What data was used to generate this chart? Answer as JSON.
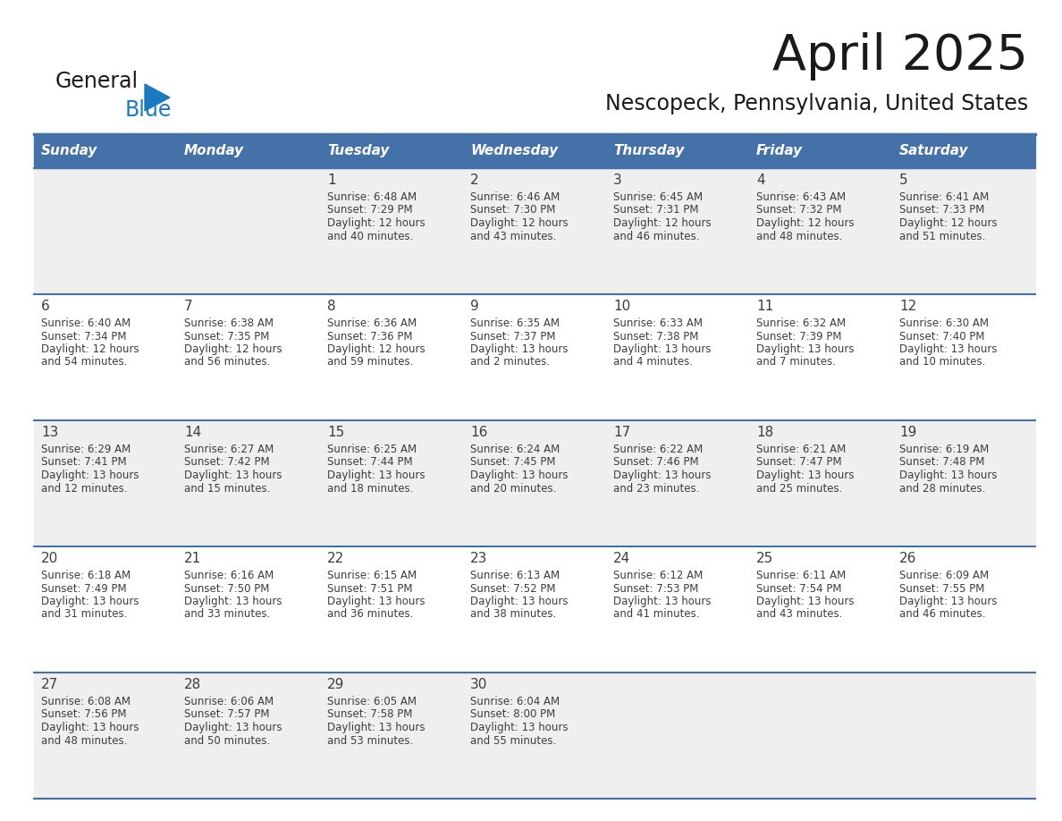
{
  "title": "April 2025",
  "subtitle": "Nescopeck, Pennsylvania, United States",
  "header_bg_color": "#4472A8",
  "header_text_color": "#FFFFFF",
  "row_bg_colors": [
    "#EFEFEF",
    "#FFFFFF",
    "#EFEFEF",
    "#FFFFFF",
    "#EFEFEF"
  ],
  "border_color": "#4472A8",
  "text_color": "#3D3D3D",
  "day_num_color": "#3D3D3D",
  "day_headers": [
    "Sunday",
    "Monday",
    "Tuesday",
    "Wednesday",
    "Thursday",
    "Friday",
    "Saturday"
  ],
  "days": [
    {
      "day": 1,
      "col": 2,
      "row": 0,
      "sunrise": "6:48 AM",
      "sunset": "7:29 PM",
      "daylight_h": "12 hours",
      "daylight_m": "40 minutes."
    },
    {
      "day": 2,
      "col": 3,
      "row": 0,
      "sunrise": "6:46 AM",
      "sunset": "7:30 PM",
      "daylight_h": "12 hours",
      "daylight_m": "43 minutes."
    },
    {
      "day": 3,
      "col": 4,
      "row": 0,
      "sunrise": "6:45 AM",
      "sunset": "7:31 PM",
      "daylight_h": "12 hours",
      "daylight_m": "46 minutes."
    },
    {
      "day": 4,
      "col": 5,
      "row": 0,
      "sunrise": "6:43 AM",
      "sunset": "7:32 PM",
      "daylight_h": "12 hours",
      "daylight_m": "48 minutes."
    },
    {
      "day": 5,
      "col": 6,
      "row": 0,
      "sunrise": "6:41 AM",
      "sunset": "7:33 PM",
      "daylight_h": "12 hours",
      "daylight_m": "51 minutes."
    },
    {
      "day": 6,
      "col": 0,
      "row": 1,
      "sunrise": "6:40 AM",
      "sunset": "7:34 PM",
      "daylight_h": "12 hours",
      "daylight_m": "54 minutes."
    },
    {
      "day": 7,
      "col": 1,
      "row": 1,
      "sunrise": "6:38 AM",
      "sunset": "7:35 PM",
      "daylight_h": "12 hours",
      "daylight_m": "56 minutes."
    },
    {
      "day": 8,
      "col": 2,
      "row": 1,
      "sunrise": "6:36 AM",
      "sunset": "7:36 PM",
      "daylight_h": "12 hours",
      "daylight_m": "59 minutes."
    },
    {
      "day": 9,
      "col": 3,
      "row": 1,
      "sunrise": "6:35 AM",
      "sunset": "7:37 PM",
      "daylight_h": "13 hours",
      "daylight_m": "2 minutes."
    },
    {
      "day": 10,
      "col": 4,
      "row": 1,
      "sunrise": "6:33 AM",
      "sunset": "7:38 PM",
      "daylight_h": "13 hours",
      "daylight_m": "4 minutes."
    },
    {
      "day": 11,
      "col": 5,
      "row": 1,
      "sunrise": "6:32 AM",
      "sunset": "7:39 PM",
      "daylight_h": "13 hours",
      "daylight_m": "7 minutes."
    },
    {
      "day": 12,
      "col": 6,
      "row": 1,
      "sunrise": "6:30 AM",
      "sunset": "7:40 PM",
      "daylight_h": "13 hours",
      "daylight_m": "10 minutes."
    },
    {
      "day": 13,
      "col": 0,
      "row": 2,
      "sunrise": "6:29 AM",
      "sunset": "7:41 PM",
      "daylight_h": "13 hours",
      "daylight_m": "12 minutes."
    },
    {
      "day": 14,
      "col": 1,
      "row": 2,
      "sunrise": "6:27 AM",
      "sunset": "7:42 PM",
      "daylight_h": "13 hours",
      "daylight_m": "15 minutes."
    },
    {
      "day": 15,
      "col": 2,
      "row": 2,
      "sunrise": "6:25 AM",
      "sunset": "7:44 PM",
      "daylight_h": "13 hours",
      "daylight_m": "18 minutes."
    },
    {
      "day": 16,
      "col": 3,
      "row": 2,
      "sunrise": "6:24 AM",
      "sunset": "7:45 PM",
      "daylight_h": "13 hours",
      "daylight_m": "20 minutes."
    },
    {
      "day": 17,
      "col": 4,
      "row": 2,
      "sunrise": "6:22 AM",
      "sunset": "7:46 PM",
      "daylight_h": "13 hours",
      "daylight_m": "23 minutes."
    },
    {
      "day": 18,
      "col": 5,
      "row": 2,
      "sunrise": "6:21 AM",
      "sunset": "7:47 PM",
      "daylight_h": "13 hours",
      "daylight_m": "25 minutes."
    },
    {
      "day": 19,
      "col": 6,
      "row": 2,
      "sunrise": "6:19 AM",
      "sunset": "7:48 PM",
      "daylight_h": "13 hours",
      "daylight_m": "28 minutes."
    },
    {
      "day": 20,
      "col": 0,
      "row": 3,
      "sunrise": "6:18 AM",
      "sunset": "7:49 PM",
      "daylight_h": "13 hours",
      "daylight_m": "31 minutes."
    },
    {
      "day": 21,
      "col": 1,
      "row": 3,
      "sunrise": "6:16 AM",
      "sunset": "7:50 PM",
      "daylight_h": "13 hours",
      "daylight_m": "33 minutes."
    },
    {
      "day": 22,
      "col": 2,
      "row": 3,
      "sunrise": "6:15 AM",
      "sunset": "7:51 PM",
      "daylight_h": "13 hours",
      "daylight_m": "36 minutes."
    },
    {
      "day": 23,
      "col": 3,
      "row": 3,
      "sunrise": "6:13 AM",
      "sunset": "7:52 PM",
      "daylight_h": "13 hours",
      "daylight_m": "38 minutes."
    },
    {
      "day": 24,
      "col": 4,
      "row": 3,
      "sunrise": "6:12 AM",
      "sunset": "7:53 PM",
      "daylight_h": "13 hours",
      "daylight_m": "41 minutes."
    },
    {
      "day": 25,
      "col": 5,
      "row": 3,
      "sunrise": "6:11 AM",
      "sunset": "7:54 PM",
      "daylight_h": "13 hours",
      "daylight_m": "43 minutes."
    },
    {
      "day": 26,
      "col": 6,
      "row": 3,
      "sunrise": "6:09 AM",
      "sunset": "7:55 PM",
      "daylight_h": "13 hours",
      "daylight_m": "46 minutes."
    },
    {
      "day": 27,
      "col": 0,
      "row": 4,
      "sunrise": "6:08 AM",
      "sunset": "7:56 PM",
      "daylight_h": "13 hours",
      "daylight_m": "48 minutes."
    },
    {
      "day": 28,
      "col": 1,
      "row": 4,
      "sunrise": "6:06 AM",
      "sunset": "7:57 PM",
      "daylight_h": "13 hours",
      "daylight_m": "50 minutes."
    },
    {
      "day": 29,
      "col": 2,
      "row": 4,
      "sunrise": "6:05 AM",
      "sunset": "7:58 PM",
      "daylight_h": "13 hours",
      "daylight_m": "53 minutes."
    },
    {
      "day": 30,
      "col": 3,
      "row": 4,
      "sunrise": "6:04 AM",
      "sunset": "8:00 PM",
      "daylight_h": "13 hours",
      "daylight_m": "55 minutes."
    }
  ],
  "logo_color_general": "#1a1a1a",
  "logo_color_blue": "#1a7abf",
  "logo_triangle_color": "#1a7abf",
  "title_fontsize": 40,
  "subtitle_fontsize": 17,
  "header_fontsize": 11,
  "daynum_fontsize": 11,
  "cell_fontsize": 8.5
}
